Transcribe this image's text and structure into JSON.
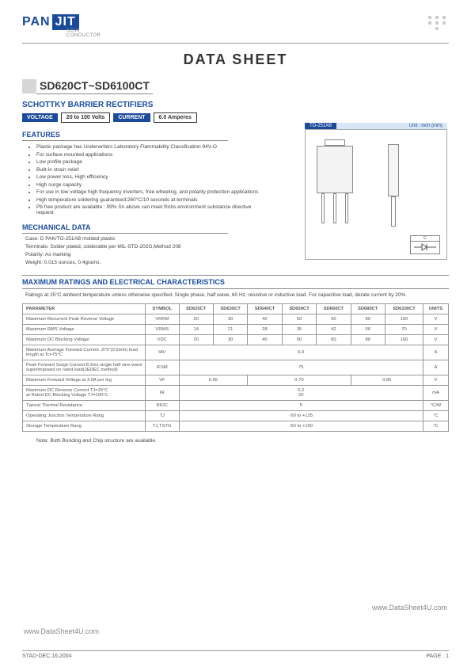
{
  "logo": {
    "left": "PAN",
    "right": "JIT",
    "sub1": "SEMI",
    "sub2": "CONDUCTOR"
  },
  "title": "DATA  SHEET",
  "partno": "SD620CT~SD6100CT",
  "subtitle": "SCHOTTKY BARRIER RECTIFIERS",
  "tags": {
    "voltage_label": "VOLTAGE",
    "voltage_val": "20 to 100 Volts",
    "current_label": "CURRENT",
    "current_val": "6.0 Amperes"
  },
  "package": {
    "name": "TO-251AB",
    "unit": "Unit : inch (mm)",
    "sym_label": "C"
  },
  "features_hd": "FEATURES",
  "features": [
    "Plastic package has Underwriters Laboratory Flammability Classification 94V-O",
    "For surface mounted applications",
    "Low profile package",
    "Built-in strain relief",
    "Low power loss, High efficiency",
    "High surge capacity",
    "For use in low voltage high frequency inverters, free wheeling, and polarity protection applications",
    "High temperature soldering guaranteed:260°C/10 seconds at terminals",
    "Pb free product are available : 99% Sn above can meet Rohs environment substance directive request"
  ],
  "mech_hd": "MECHANICAL DATA",
  "mech": [
    "Case: D PAK/TO-251AB molded plastic",
    "Terminals: Solder plated, solderable per MIL-STD-202G,Method 208",
    "Polarity:   As marking",
    "Weight: 0.015 ounces, 0.4grams."
  ],
  "ratings_hd": "MAXIMUM RATINGS AND ELECTRICAL CHARACTERISTICS",
  "ratings_note": "Ratings at 25°C ambient temperature unless otherwise specified.  Single phase, half wave, 60 Hz, resistive or inductive load. For capacitive load, derate current by 20%",
  "cols": [
    "PARAMETER",
    "SYMBOL",
    "SD620CT",
    "SD630CT",
    "SD640CT",
    "SD650CT",
    "SD660CT",
    "SD680CT",
    "SD6100CT",
    "UNITS"
  ],
  "rows": [
    {
      "p": "Maximum Recurrent Peak Reverse Voltage",
      "s": "VRRM",
      "v": [
        "20",
        "30",
        "40",
        "50",
        "60",
        "80",
        "100"
      ],
      "u": "V"
    },
    {
      "p": "Maximum RMS Voltage",
      "s": "VRMS",
      "v": [
        "14",
        "21",
        "28",
        "35",
        "42",
        "56",
        "70"
      ],
      "u": "V"
    },
    {
      "p": "Maximum DC Blocking Voltage",
      "s": "VDC",
      "v": [
        "20",
        "30",
        "40",
        "50",
        "60",
        "80",
        "100"
      ],
      "u": "V"
    }
  ],
  "merged_rows": [
    {
      "p": "Maximum Average Forward  Current .375\"(9.5mm) lead length at Tc=75°C",
      "s": "IAV",
      "v": "6.0",
      "u": "A"
    },
    {
      "p": "Peak Forward Surge Current:8.3ms single half sine-wave superimposed on rated load(JEDEC method)",
      "s": "IFSM",
      "v": "75",
      "u": "A"
    }
  ],
  "vf_row": {
    "p": "Maximum Forward Voltage at 3.0A per leg",
    "s": "VF",
    "v": [
      "0.55",
      "0.70",
      "0.85"
    ],
    "u": "V"
  },
  "ir_row": {
    "p": "Maximum DC Reverse Current TJ=25°C\nat Rated DC Blocking Voltage TJ=100°C",
    "s": "IR",
    "v1": "0.2",
    "v2": "20",
    "u": "mA"
  },
  "tail_rows": [
    {
      "p": "Typical Thermal Resistance",
      "s": "RθJC",
      "v": "5",
      "u": "°C/W"
    },
    {
      "p": "Operating Junction Temperature Rang",
      "s": "TJ",
      "v": "-50 to +125",
      "u": "°C"
    },
    {
      "p": "Storage Temperature Rang",
      "s": "TJ,TSTG",
      "v": "-50 to +150",
      "u": "°C"
    }
  ],
  "note": "Note: Both Bonding and Chip structure are available.",
  "watermark": "www.DataSheet4U.com",
  "footer": {
    "left": "STAD-DEC.16.2004",
    "right": "PAGE .  1"
  }
}
